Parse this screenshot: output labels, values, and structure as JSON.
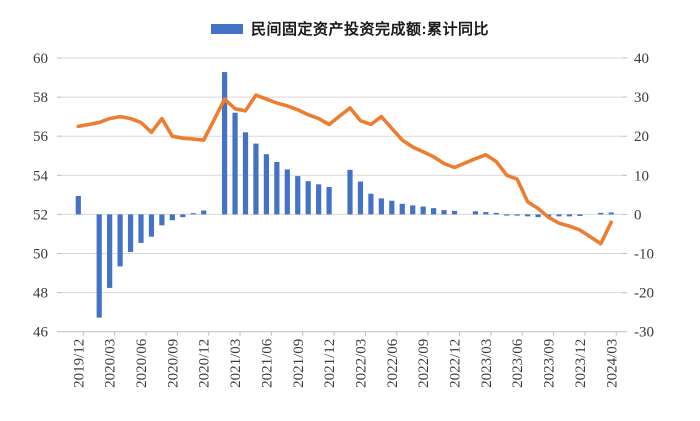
{
  "legend": {
    "label": "民间固定资产投资完成额:累计同比"
  },
  "colors": {
    "bar": "#4472C4",
    "line": "#ED7D31",
    "grid": "#D9D9D9",
    "axis": "#BFBFBF",
    "text": "#3B3B3B",
    "background": "#FFFFFF"
  },
  "chart_data": {
    "type": "bar",
    "title": "",
    "legend_position": "top",
    "grid": "horizontal",
    "left_axis": {
      "range": [
        46,
        60
      ],
      "ticks": [
        60,
        58,
        56,
        54,
        52,
        50,
        48,
        46
      ]
    },
    "right_axis": {
      "range": [
        -30,
        40
      ],
      "ticks": [
        40,
        30,
        20,
        10,
        0,
        -10,
        -20,
        -30
      ]
    },
    "x_tick_labels": [
      "2019/12",
      "2020/03",
      "2020/06",
      "2020/09",
      "2020/12",
      "2021/03",
      "2021/06",
      "2021/09",
      "2021/12",
      "2022/03",
      "2022/06",
      "2022/09",
      "2022/12",
      "2023/03",
      "2023/06",
      "2023/09",
      "2023/12",
      "2024/03"
    ],
    "series": [
      {
        "name": "民间固定资产投资完成额:累计同比",
        "type": "bar",
        "axis": "right",
        "points": [
          [
            "2019/12",
            4.7
          ],
          [
            "2020/02",
            -26.4
          ],
          [
            "2020/03",
            -18.8
          ],
          [
            "2020/04",
            -13.3
          ],
          [
            "2020/05",
            -9.6
          ],
          [
            "2020/06",
            -7.3
          ],
          [
            "2020/07",
            -5.7
          ],
          [
            "2020/08",
            -2.8
          ],
          [
            "2020/09",
            -1.5
          ],
          [
            "2020/10",
            -0.7
          ],
          [
            "2020/11",
            0.2
          ],
          [
            "2020/12",
            1.0
          ],
          [
            "2021/02",
            36.4
          ],
          [
            "2021/03",
            26.0
          ],
          [
            "2021/04",
            21.0
          ],
          [
            "2021/05",
            18.1
          ],
          [
            "2021/06",
            15.4
          ],
          [
            "2021/07",
            13.4
          ],
          [
            "2021/08",
            11.5
          ],
          [
            "2021/09",
            9.8
          ],
          [
            "2021/10",
            8.5
          ],
          [
            "2021/11",
            7.7
          ],
          [
            "2021/12",
            7.0
          ],
          [
            "2022/02",
            11.4
          ],
          [
            "2022/03",
            8.4
          ],
          [
            "2022/04",
            5.3
          ],
          [
            "2022/05",
            4.1
          ],
          [
            "2022/06",
            3.5
          ],
          [
            "2022/07",
            2.7
          ],
          [
            "2022/08",
            2.3
          ],
          [
            "2022/09",
            2.0
          ],
          [
            "2022/10",
            1.6
          ],
          [
            "2022/11",
            1.1
          ],
          [
            "2022/12",
            0.9
          ],
          [
            "2023/02",
            0.8
          ],
          [
            "2023/03",
            0.6
          ],
          [
            "2023/04",
            0.4
          ],
          [
            "2023/05",
            -0.1
          ],
          [
            "2023/06",
            -0.2
          ],
          [
            "2023/07",
            -0.5
          ],
          [
            "2023/08",
            -0.7
          ],
          [
            "2023/09",
            -0.6
          ],
          [
            "2023/10",
            -0.5
          ],
          [
            "2023/11",
            -0.5
          ],
          [
            "2023/12",
            -0.4
          ],
          [
            "2024/02",
            0.4
          ],
          [
            "2024/03",
            0.5
          ]
        ]
      },
      {
        "name": "unlabeled-orange-line",
        "type": "line",
        "axis": "left",
        "points": [
          [
            "2019/12",
            56.5
          ],
          [
            "2020/02",
            56.7
          ],
          [
            "2020/03",
            56.9
          ],
          [
            "2020/04",
            57.0
          ],
          [
            "2020/05",
            56.9
          ],
          [
            "2020/06",
            56.7
          ],
          [
            "2020/07",
            56.2
          ],
          [
            "2020/08",
            56.9
          ],
          [
            "2020/09",
            56.0
          ],
          [
            "2020/10",
            55.9
          ],
          [
            "2020/11",
            55.85
          ],
          [
            "2020/12",
            55.8
          ],
          [
            "2021/02",
            57.9
          ],
          [
            "2021/03",
            57.4
          ],
          [
            "2021/04",
            57.3
          ],
          [
            "2021/05",
            58.1
          ],
          [
            "2021/06",
            57.9
          ],
          [
            "2021/07",
            57.7
          ],
          [
            "2021/08",
            57.55
          ],
          [
            "2021/09",
            57.35
          ],
          [
            "2021/10",
            57.1
          ],
          [
            "2021/11",
            56.9
          ],
          [
            "2021/12",
            56.6
          ],
          [
            "2022/02",
            57.45
          ],
          [
            "2022/03",
            56.8
          ],
          [
            "2022/04",
            56.6
          ],
          [
            "2022/05",
            57.0
          ],
          [
            "2022/06",
            56.4
          ],
          [
            "2022/07",
            55.8
          ],
          [
            "2022/08",
            55.45
          ],
          [
            "2022/09",
            55.2
          ],
          [
            "2022/10",
            54.95
          ],
          [
            "2022/11",
            54.6
          ],
          [
            "2022/12",
            54.4
          ],
          [
            "2023/02",
            54.85
          ],
          [
            "2023/03",
            55.05
          ],
          [
            "2023/04",
            54.7
          ],
          [
            "2023/05",
            54.0
          ],
          [
            "2023/06",
            53.8
          ],
          [
            "2023/07",
            52.65
          ],
          [
            "2023/08",
            52.3
          ],
          [
            "2023/09",
            51.85
          ],
          [
            "2023/10",
            51.55
          ],
          [
            "2023/11",
            51.4
          ],
          [
            "2023/12",
            51.2
          ],
          [
            "2024/02",
            50.5
          ],
          [
            "2024/03",
            51.6
          ]
        ]
      }
    ]
  }
}
